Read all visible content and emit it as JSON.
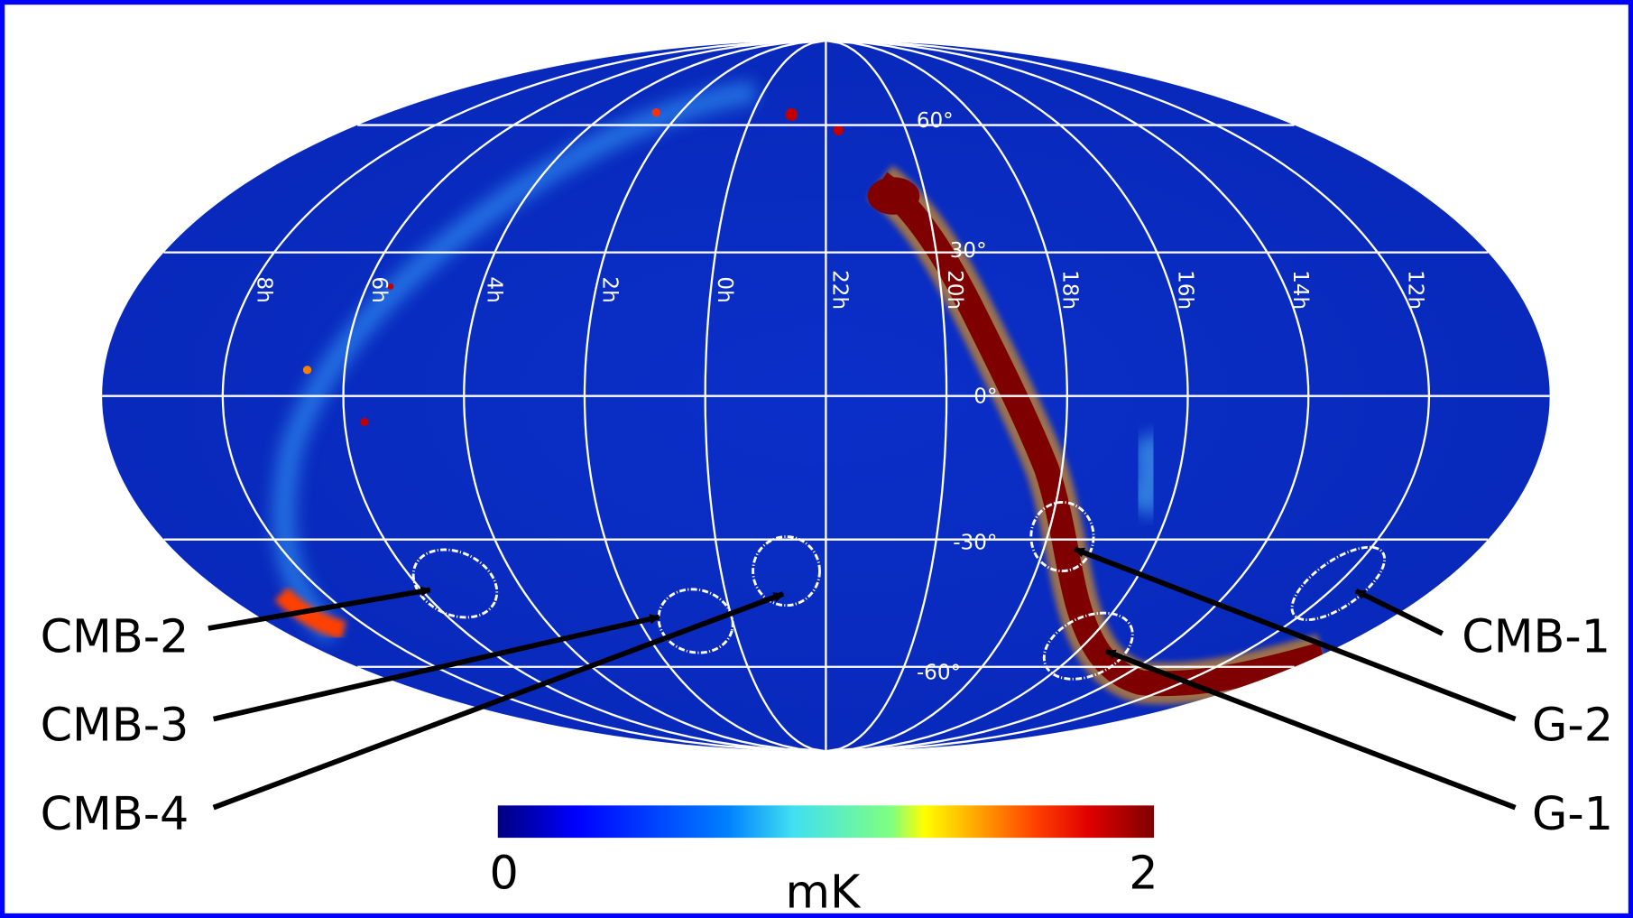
{
  "sky_map": {
    "ra_labels": [
      "8h",
      "6h",
      "4h",
      "2h",
      "0h",
      "22h",
      "20h",
      "18h",
      "16h",
      "14h",
      "12h"
    ],
    "dec_labels": [
      "60°",
      "30°",
      "0°",
      "-30°",
      "-60°"
    ],
    "regions": [
      {
        "label": "CMB-1"
      },
      {
        "label": "CMB-2"
      },
      {
        "label": "CMB-3"
      },
      {
        "label": "CMB-4"
      },
      {
        "label": "G-1"
      },
      {
        "label": "G-2"
      }
    ],
    "colorbar": {
      "min": 0,
      "max": 2,
      "unit": "mK"
    }
  }
}
